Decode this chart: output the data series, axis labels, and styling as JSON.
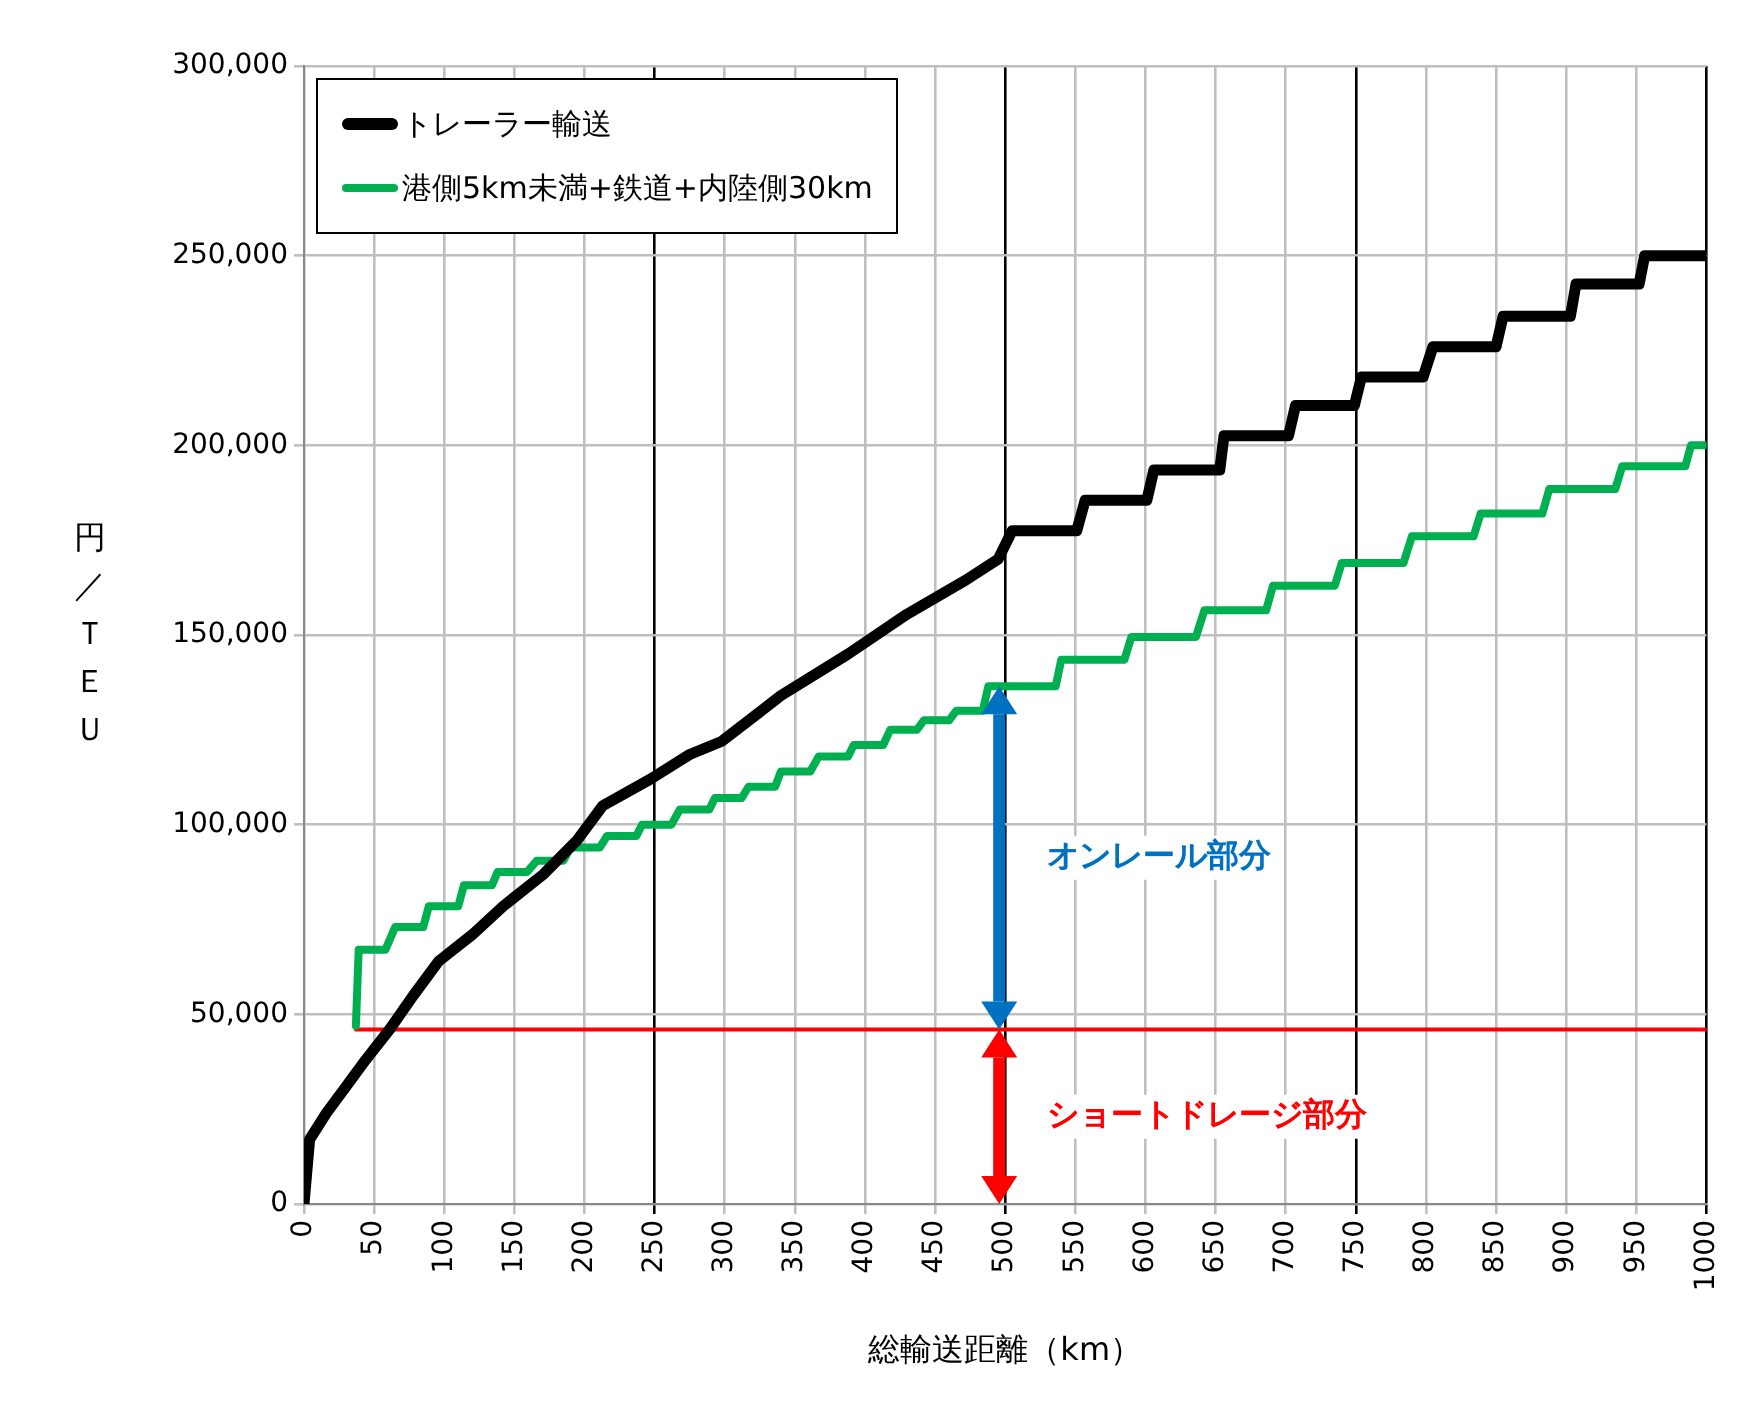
{
  "chart_data": {
    "type": "line",
    "xlabel": "総輸送距離（km）",
    "ylabel": "円／ＴＥＵ",
    "xlim": [
      0,
      1000
    ],
    "xticks": [
      0,
      50,
      100,
      150,
      200,
      250,
      300,
      350,
      400,
      450,
      500,
      550,
      600,
      650,
      700,
      750,
      800,
      850,
      900,
      950,
      1000
    ],
    "ylim": [
      0,
      300000
    ],
    "yticks": [
      {
        "value": 0,
        "label": "0"
      },
      {
        "value": 50000,
        "label": "50,000"
      },
      {
        "value": 100000,
        "label": "100,000"
      },
      {
        "value": 150000,
        "label": "150,000"
      },
      {
        "value": 200000,
        "label": "200,000"
      },
      {
        "value": 250000,
        "label": "250,000"
      },
      {
        "value": 300000,
        "label": "300,000"
      }
    ],
    "grid": true,
    "legend": "top left",
    "marker": "none",
    "line_style": "solid",
    "series": [
      {
        "name": "トレーラー輸送",
        "color": "#000000",
        "x": [
          0,
          4,
          16,
          30,
          44,
          61,
          78,
          96,
          120,
          142,
          171,
          195,
          213,
          247,
          275,
          298,
          340,
          388,
          430,
          472,
          495,
          505,
          551,
          557,
          601,
          606,
          653,
          656,
          702,
          707,
          749,
          754,
          798,
          805,
          850,
          855,
          903,
          907,
          952,
          956,
          1000
        ],
        "values": [
          0,
          17000,
          24000,
          31000,
          38000,
          46000,
          55000,
          64000,
          71000,
          78500,
          87000,
          96000,
          105000,
          112000,
          118500,
          122000,
          134000,
          145000,
          155500,
          164500,
          170000,
          177500,
          177500,
          185500,
          185500,
          193500,
          193500,
          202500,
          202500,
          210500,
          210500,
          218000,
          218000,
          226000,
          226000,
          234000,
          234000,
          242500,
          242500,
          250000,
          250000
        ]
      },
      {
        "name": "港側5km未満+鉄道+内陸側30km",
        "color": "#00b050",
        "x": [
          37,
          39,
          58,
          65,
          85,
          89,
          110,
          114,
          134,
          138,
          159,
          166,
          185,
          190,
          211,
          216,
          237,
          241,
          262,
          268,
          289,
          293,
          312,
          317,
          336,
          340,
          361,
          367,
          388,
          392,
          413,
          418,
          437,
          442,
          460,
          465,
          484,
          488,
          536,
          540,
          585,
          590,
          636,
          642,
          686,
          691,
          735,
          740,
          784,
          790,
          834,
          839,
          883,
          888,
          935,
          940,
          985,
          989,
          1000
        ],
        "values": [
          47000,
          67000,
          67000,
          73000,
          73000,
          78500,
          78500,
          84000,
          84000,
          87500,
          87500,
          90500,
          90500,
          94000,
          94000,
          97000,
          97000,
          100000,
          100000,
          104000,
          104000,
          107000,
          107000,
          110000,
          110000,
          114000,
          114000,
          118000,
          118000,
          121000,
          121000,
          125000,
          125000,
          127500,
          127500,
          130000,
          130000,
          136500,
          136500,
          143500,
          143500,
          149500,
          149500,
          156500,
          156500,
          163000,
          163000,
          169000,
          169000,
          176000,
          176000,
          182000,
          182000,
          188500,
          188500,
          194500,
          194500,
          200000,
          200000
        ]
      },
      {
        "color": "#ff0000",
        "x": [
          37,
          1000
        ],
        "values": [
          46000,
          46000
        ]
      }
    ],
    "annotations": [
      "オンレール部分",
      "ショートドレージ部分"
    ]
  }
}
